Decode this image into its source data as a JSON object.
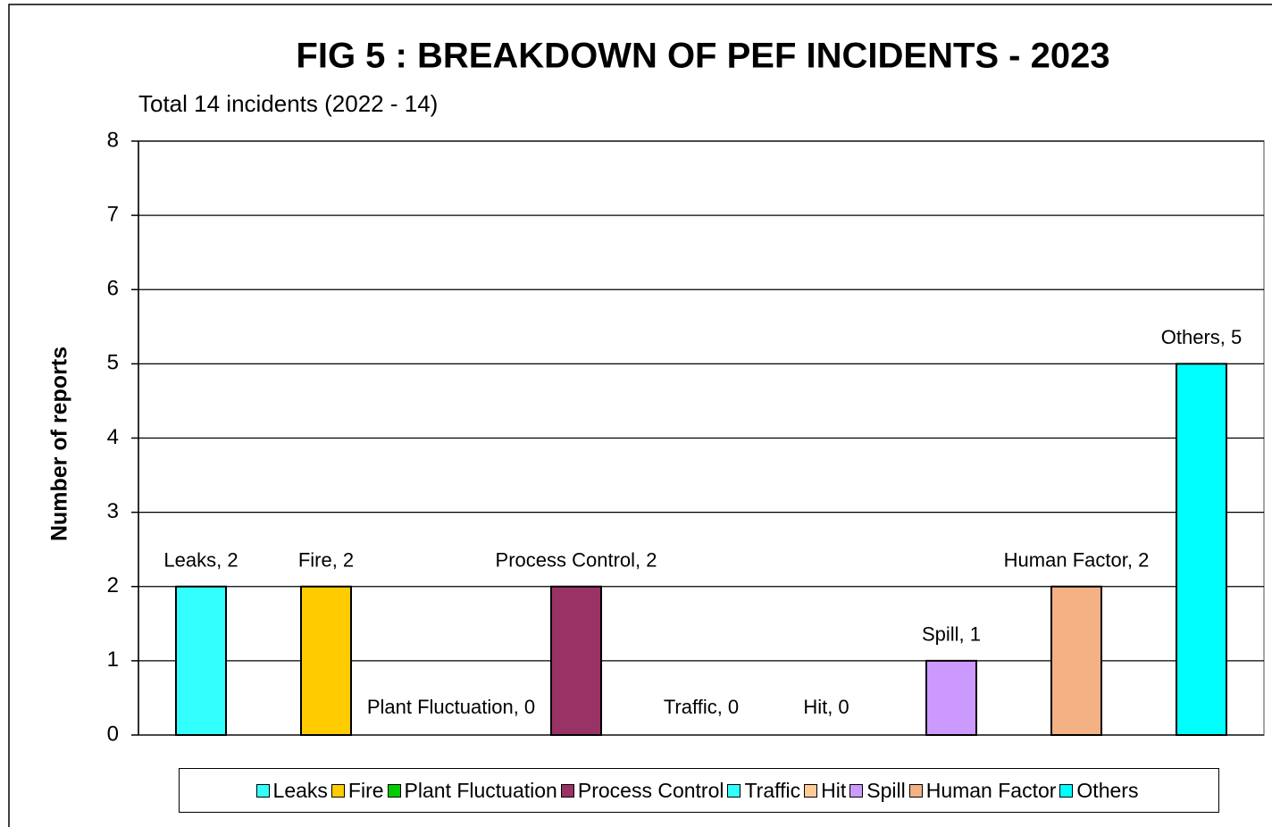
{
  "chart_data": {
    "type": "bar",
    "title": "FIG 5 : BREAKDOWN  OF PEF INCIDENTS - 2023",
    "subtitle": "Total 14 incidents (2022 - 14)",
    "y_label": "Number of reports",
    "categories": [
      "Leaks",
      "Fire",
      "Plant Fluctuation",
      "Process Control",
      "Traffic",
      "Hit",
      "Spill",
      "Human Factor",
      "Others"
    ],
    "values": [
      2,
      2,
      0,
      2,
      0,
      0,
      1,
      2,
      5
    ],
    "value_labels": [
      "Leaks, 2",
      "Fire, 2",
      "Plant Fluctuation, 0",
      "Process Control, 2",
      "Traffic, 0",
      "Hit, 0",
      "Spill, 1",
      "Human Factor, 2",
      "Others, 5"
    ],
    "colors": [
      "#33ffff",
      "#ffcc00",
      "#00cc00",
      "#993366",
      "#33ffff",
      "#ffcc99",
      "#cc99ff",
      "#f4b183",
      "#00ffff"
    ],
    "ylim": [
      0,
      8
    ],
    "yticks": [
      0,
      1,
      2,
      3,
      4,
      5,
      6,
      7,
      8
    ],
    "grid": true,
    "legend": "bottom"
  }
}
